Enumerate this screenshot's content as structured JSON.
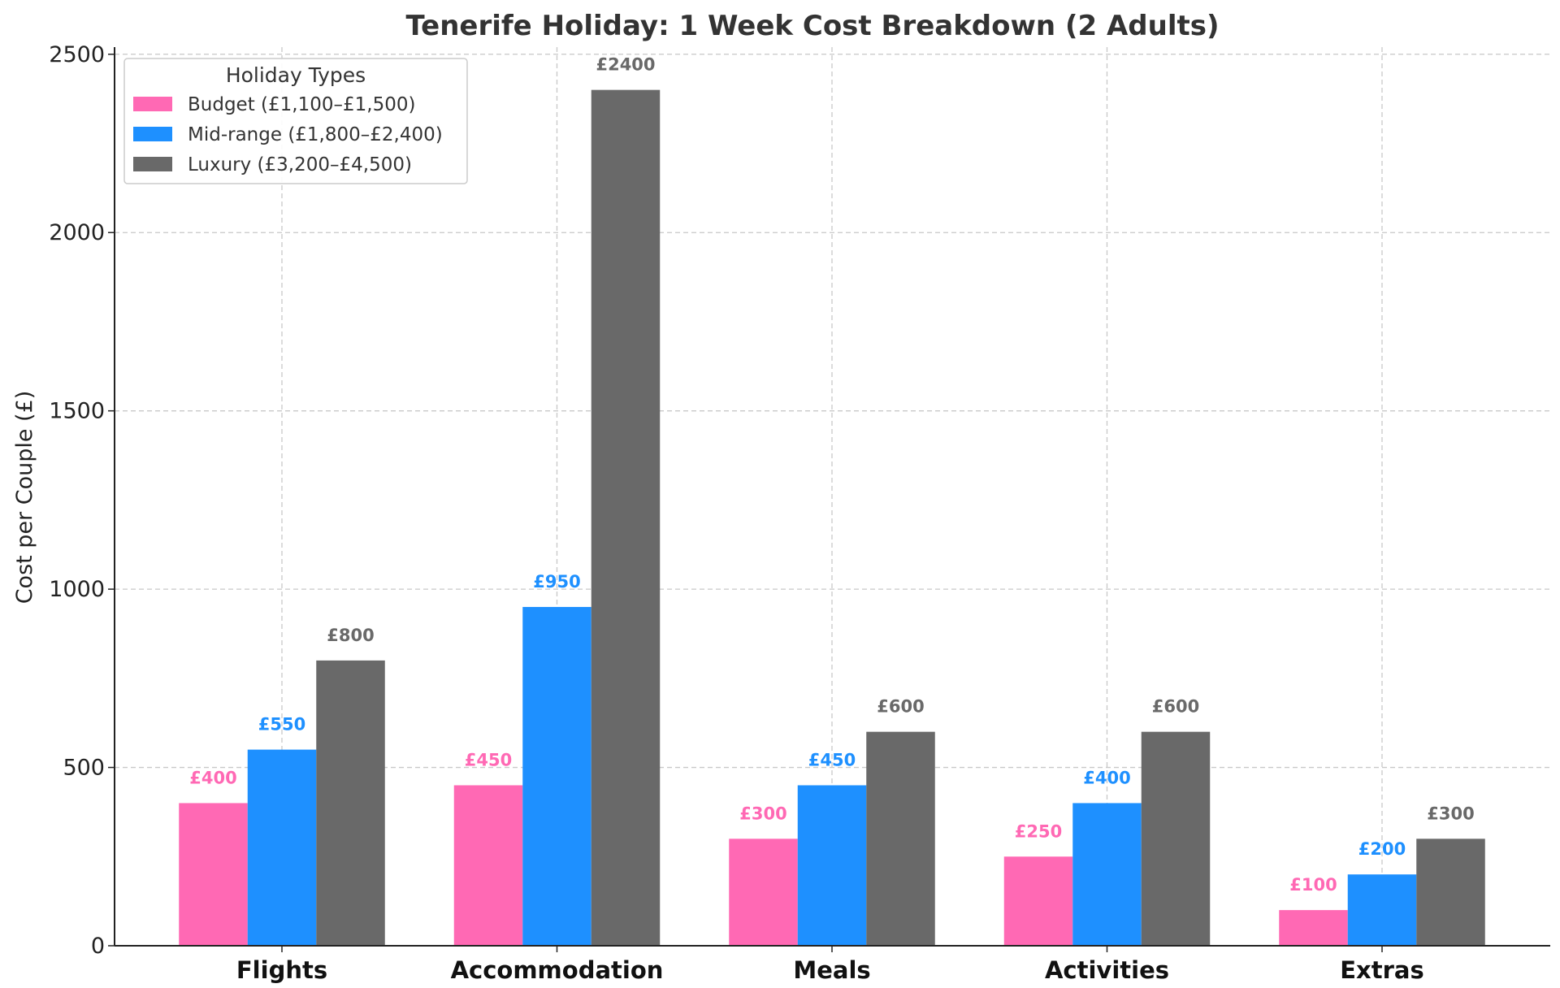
{
  "chart_data": {
    "type": "bar",
    "title": "Tenerife Holiday: 1 Week Cost Breakdown (2 Adults)",
    "xlabel": "",
    "ylabel": "Cost per Couple (£)",
    "ylim": [
      0,
      2520
    ],
    "yticks": [
      0,
      500,
      1000,
      1500,
      2000,
      2500
    ],
    "grid": true,
    "categories": [
      "Flights",
      "Accommodation",
      "Meals",
      "Activities",
      "Extras"
    ],
    "legend": {
      "title": "Holiday Types",
      "location": "top-left"
    },
    "series": [
      {
        "name": "Budget (£1,100–£1,500)",
        "color": "#ff69b4",
        "values": [
          400,
          450,
          300,
          250,
          100
        ],
        "labels": [
          "£400",
          "£450",
          "£300",
          "£250",
          "£100"
        ]
      },
      {
        "name": "Mid-range (£1,800–£2,400)",
        "color": "#1e90ff",
        "values": [
          550,
          950,
          450,
          400,
          200
        ],
        "labels": [
          "£550",
          "£950",
          "£450",
          "£400",
          "£200"
        ]
      },
      {
        "name": "Luxury (£3,200–£4,500)",
        "color": "#696969",
        "values": [
          800,
          2400,
          600,
          600,
          300
        ],
        "labels": [
          "£800",
          "£2400",
          "£600",
          "£600",
          "£300"
        ]
      }
    ]
  }
}
